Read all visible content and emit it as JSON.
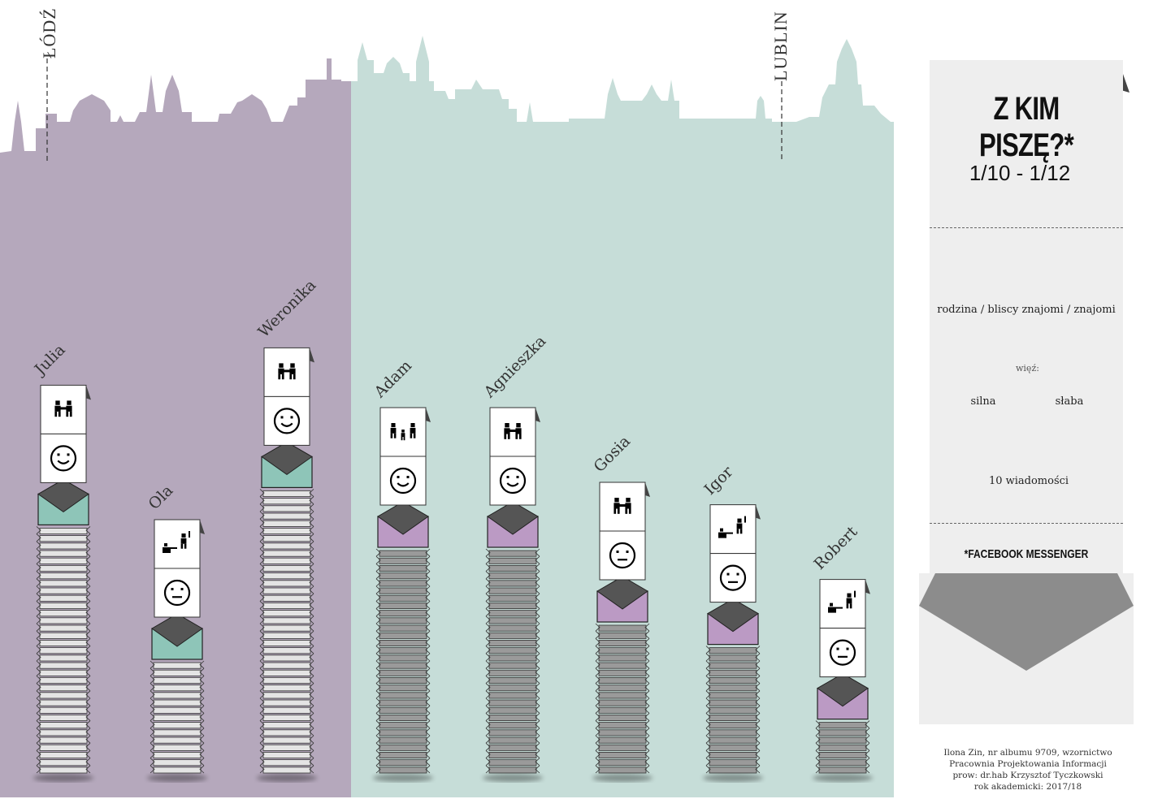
{
  "cities": {
    "left": "ŁÓDŹ",
    "right": "LUBLIN"
  },
  "colors": {
    "lodz_bg": "#b5a8bc",
    "lublin_bg": "#c6ddd8",
    "envelope_teal": "#8ec5b8",
    "envelope_purple": "#bb9ac4",
    "envelope_flap": "#555555",
    "stack_light": "#e4e4e4",
    "stack_dark": "#9a9a9a"
  },
  "legend": {
    "title": "Z KIM PISZĘ?*",
    "date_range": "1/10 - 1/12",
    "relationships_label": "rodzina / bliscy znajomi / znajomi",
    "bond_label": "więź:",
    "strong_label": "silna",
    "weak_label": "słaba",
    "envelope_label": "10 wiadomości",
    "footnote": "*FACEBOOK MESSENGER"
  },
  "credits": {
    "line1": "Ilona Zin, nr albumu 9709, wzornictwo",
    "line2": "Pracownia Projektowania Informacji",
    "line3": "prow: dr.hab Krzysztof Tyczkowski",
    "line4": "rok akademicki: 2017/18"
  },
  "chart_data": {
    "type": "bar",
    "unit_per_envelope": 10,
    "categories": [
      "Julia",
      "Ola",
      "Weronika",
      "Adam",
      "Agnieszka",
      "Gosia",
      "Igor",
      "Robert"
    ],
    "values": [
      330,
      150,
      380,
      300,
      300,
      200,
      170,
      70
    ],
    "city": [
      "ŁÓDŹ",
      "ŁÓDŹ",
      "ŁÓDŹ",
      "LUBLIN",
      "LUBLIN",
      "LUBLIN",
      "LUBLIN",
      "LUBLIN"
    ],
    "relationship": [
      "bliscy znajomi",
      "znajomi",
      "bliscy znajomi",
      "rodzina",
      "bliscy znajomi",
      "bliscy znajomi",
      "znajomi",
      "znajomi"
    ],
    "bond": [
      "silna",
      "słaba",
      "silna",
      "silna",
      "silna",
      "słaba",
      "słaba",
      "słaba"
    ]
  }
}
